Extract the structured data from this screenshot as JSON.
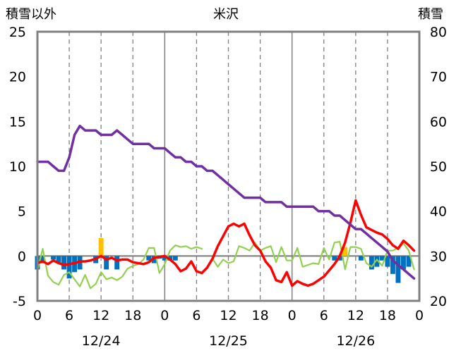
{
  "chart_data": {
    "type": "line",
    "title": "米沢",
    "left_axis_label": "積雪以外",
    "right_axis_label": "積雪",
    "left_ylim": [
      -5,
      25
    ],
    "left_yticks": [
      "-5",
      "0",
      "5",
      "10",
      "15",
      "20",
      "25"
    ],
    "right_ylim": [
      20,
      80
    ],
    "right_yticks": [
      "20",
      "30",
      "40",
      "50",
      "60",
      "70",
      "80"
    ],
    "x_hours": [
      0,
      72
    ],
    "x_tick_labels": [
      "0",
      "6",
      "12",
      "18",
      "0",
      "6",
      "12",
      "18",
      "0",
      "6",
      "12",
      "18",
      "0"
    ],
    "date_labels": [
      "12/24",
      "12/25",
      "12/26"
    ],
    "grid": true,
    "colors": {
      "snow_depth": "#7030a0",
      "temperature": "#ff0000",
      "green_line": "#92d050",
      "blue_bars": "#0070c0",
      "yellow_bars": "#ffc000",
      "axis": "#808080",
      "zero_line": "#7f7f7f"
    },
    "series": [
      {
        "key": "snow_depth",
        "axis": "right",
        "x": [
          0,
          1,
          2,
          3,
          4,
          5,
          6,
          7,
          8,
          9,
          10,
          11,
          12,
          13,
          14,
          15,
          16,
          17,
          18,
          19,
          20,
          21,
          22,
          23,
          24,
          25,
          26,
          27,
          28,
          29,
          30,
          31,
          32,
          33,
          34,
          35,
          36,
          37,
          38,
          39,
          40,
          41,
          42,
          43,
          44,
          45,
          46,
          47,
          48,
          49,
          50,
          51,
          52,
          53,
          54,
          55,
          56,
          57,
          58,
          59,
          60,
          61,
          62,
          63,
          64,
          65,
          66,
          67,
          68,
          69,
          70,
          71
        ],
        "values": [
          51,
          51,
          51,
          50,
          49,
          49,
          52,
          57,
          59,
          58,
          58,
          58,
          57,
          57,
          57,
          58,
          57,
          56,
          55,
          55,
          55,
          55,
          54,
          54,
          54,
          53,
          52,
          52,
          51,
          51,
          50,
          50,
          49,
          49,
          48,
          47,
          46,
          45,
          44,
          43,
          43,
          43,
          43,
          42,
          42,
          42,
          42,
          41,
          41,
          41,
          41,
          41,
          41,
          40,
          40,
          40,
          39,
          39,
          38,
          37,
          36,
          36,
          35,
          34,
          33,
          32,
          31,
          29,
          28,
          27,
          26,
          25
        ]
      },
      {
        "key": "temperature",
        "axis": "left",
        "x": [
          0,
          1,
          2,
          3,
          4,
          5,
          6,
          7,
          8,
          9,
          10,
          11,
          12,
          13,
          14,
          15,
          16,
          17,
          18,
          19,
          20,
          21,
          22,
          23,
          24,
          25,
          26,
          27,
          28,
          29,
          30,
          31,
          32,
          33,
          34,
          35,
          36,
          37,
          38,
          39,
          40,
          41,
          42,
          43,
          44,
          45,
          46,
          47,
          48,
          49,
          50,
          51,
          52,
          53,
          54,
          55,
          56,
          57,
          58,
          59,
          60,
          61,
          62,
          63,
          64,
          65,
          66,
          67,
          68,
          69,
          70,
          71
        ],
        "values": [
          -0.8,
          -0.6,
          -0.9,
          -0.5,
          -0.8,
          -1.0,
          -0.9,
          -0.8,
          -0.6,
          -0.6,
          -0.5,
          -0.3,
          0.0,
          -0.4,
          -0.2,
          -0.5,
          -0.4,
          -0.4,
          -0.7,
          -0.8,
          -0.9,
          -0.7,
          -0.2,
          -0.1,
          0.0,
          -0.4,
          -0.9,
          -1.7,
          -1.4,
          -0.6,
          -1.7,
          -1.9,
          -1.3,
          -0.3,
          1.1,
          2.2,
          3.3,
          3.6,
          3.3,
          3.6,
          2.3,
          1.2,
          0.6,
          -0.6,
          -1.3,
          -2.7,
          -2.9,
          -1.8,
          -3.3,
          -2.8,
          -3.1,
          -3.3,
          -3.1,
          -2.7,
          -2.3,
          -1.6,
          -0.9,
          0.0,
          1.5,
          3.7,
          6.2,
          4.6,
          3.2,
          2.9,
          2.6,
          2.4,
          1.9,
          1.2,
          0.8,
          1.7,
          1.2,
          0.6
        ]
      },
      {
        "key": "green_line",
        "axis": "left",
        "x": [
          0,
          1,
          2,
          3,
          4,
          5,
          6,
          7,
          8,
          9,
          10,
          11,
          12,
          13,
          14,
          15,
          16,
          17,
          18,
          19,
          20,
          21,
          22,
          23,
          24,
          25,
          26,
          27,
          28,
          29,
          30,
          31,
          32,
          33,
          34,
          35,
          36,
          37,
          38,
          39,
          40,
          41,
          42,
          43,
          44,
          45,
          46,
          47,
          48,
          49,
          50,
          51,
          52,
          53,
          54,
          55,
          56,
          57,
          58,
          59,
          60,
          61,
          62,
          63,
          64,
          65,
          66,
          67,
          68,
          69,
          70,
          71
        ],
        "values": [
          -1.6,
          0.8,
          -2.2,
          -2.9,
          -3.2,
          -2.1,
          -1.8,
          -2.6,
          -3.4,
          -2.1,
          -3.6,
          -3.1,
          -1.8,
          -2.6,
          -2.4,
          -2.7,
          -2.3,
          -1.4,
          -1.1,
          -0.9,
          -0.4,
          0.9,
          0.9,
          -1.9,
          -0.9,
          0.6,
          1.2,
          1.0,
          1.1,
          0.8,
          1.0,
          0.8,
          null,
          -0.3,
          -1.2,
          -0.4,
          -0.8,
          -0.6,
          1.1,
          0.9,
          0.6,
          1.5,
          0.6,
          0.9,
          1.1,
          -0.7,
          1.0,
          -0.5,
          -0.5,
          0.9,
          -1.2,
          -1.0,
          -0.8,
          -0.9,
          0.9,
          -0.4,
          1.5,
          1.6,
          -1.5,
          1.0,
          1.0,
          0.8,
          -0.8,
          -1.2,
          -0.4,
          -1.1,
          0.6,
          0.6,
          0.9,
          1.4,
          0.6,
          -1.5
        ]
      }
    ],
    "bars": [
      {
        "key": "blue_bars",
        "axis": "left",
        "x": [
          0,
          1,
          3,
          4,
          5,
          6,
          7,
          8,
          11,
          13,
          15,
          21,
          22,
          23,
          24,
          25,
          26,
          56,
          57,
          61,
          63,
          64,
          65,
          66,
          67,
          68,
          69,
          70
        ],
        "values": [
          -1.5,
          -0.8,
          -0.4,
          -0.8,
          -1.5,
          -2.5,
          -1.8,
          -1.5,
          -0.8,
          -1.5,
          -1.5,
          -0.5,
          -0.8,
          -0.3,
          -0.5,
          -0.5,
          -0.5,
          -0.5,
          -0.5,
          -0.5,
          -1.5,
          -1.2,
          -0.5,
          -1.2,
          -2.0,
          -3.0,
          -1.5,
          -1.2
        ]
      },
      {
        "key": "yellow_bars",
        "axis": "left",
        "x": [
          12,
          58
        ],
        "values": [
          2.0,
          1.0
        ]
      }
    ]
  }
}
